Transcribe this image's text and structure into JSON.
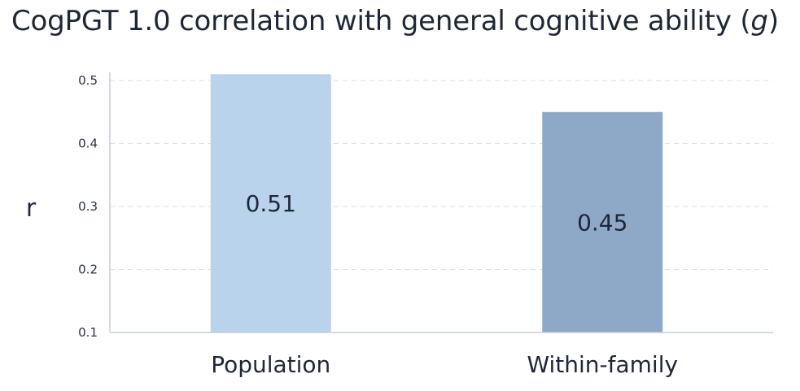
{
  "title": {
    "main": "CogPGT 1.0 correlation with general cognitive ability (",
    "italic": "g",
    "close": ")"
  },
  "chart_data": {
    "type": "bar",
    "title": "CogPGT 1.0 correlation with general cognitive ability (g)",
    "categories": [
      "Population",
      "Within-family"
    ],
    "values": [
      0.51,
      0.45
    ],
    "value_labels": [
      "0.51",
      "0.45"
    ],
    "colors": [
      "#b9d3ec",
      "#8ea9c7"
    ],
    "ylabel": "r",
    "xlabel": "",
    "ylim": [
      0.1,
      0.5
    ],
    "yticks": [
      "0.1",
      "0.2",
      "0.3",
      "0.4",
      "0.5"
    ],
    "grid": true
  }
}
